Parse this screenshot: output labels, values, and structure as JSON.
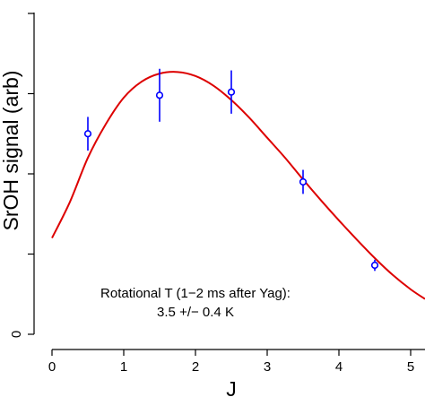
{
  "chart_data": {
    "type": "scatter",
    "title": "",
    "xlabel": "J",
    "ylabel": "SrOH signal (arb)",
    "xlim": [
      -0.2,
      5.2
    ],
    "ylim": [
      -0.05,
      4.3
    ],
    "x_ticks": [
      0,
      1,
      2,
      3,
      4,
      5
    ],
    "x_tick_labels": [
      "0",
      "1",
      "2",
      "3",
      "4",
      "5"
    ],
    "y_ticks": [
      0,
      1,
      2,
      3,
      4
    ],
    "y_tick_labels": [
      "0",
      "",
      "",
      "",
      ""
    ],
    "grid": false,
    "legend": "none",
    "series": [
      {
        "kind": "points_with_error_bars",
        "color": "#0000ff",
        "x": [
          0.5,
          1.5,
          2.5,
          3.5,
          4.5
        ],
        "y": [
          2.5,
          2.98,
          3.02,
          1.9,
          0.86
        ],
        "y_err": [
          0.21,
          0.33,
          0.27,
          0.15,
          0.07
        ]
      },
      {
        "kind": "fit_curve",
        "color": "#dd0000",
        "x": [
          0.0,
          0.25,
          0.5,
          0.75,
          1.0,
          1.25,
          1.5,
          1.75,
          2.0,
          2.25,
          2.5,
          2.75,
          3.0,
          3.25,
          3.5,
          3.75,
          4.0,
          4.25,
          4.5,
          4.75,
          5.0,
          5.2
        ],
        "y": [
          1.2,
          1.65,
          2.2,
          2.62,
          2.95,
          3.15,
          3.25,
          3.27,
          3.22,
          3.1,
          2.92,
          2.7,
          2.45,
          2.2,
          1.93,
          1.67,
          1.42,
          1.18,
          0.95,
          0.74,
          0.56,
          0.44
        ]
      }
    ],
    "annotations": [
      "Rotational T (1−2 ms after Yag):",
      "3.5 +/− 0.4  K"
    ]
  }
}
